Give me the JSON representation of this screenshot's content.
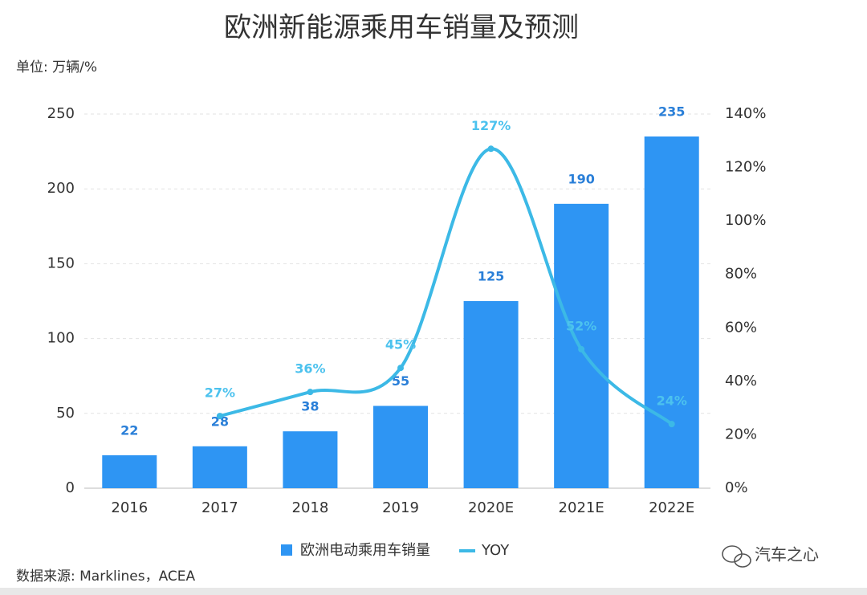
{
  "chart_data": {
    "type": "bar-line",
    "title": "欧洲新能源乘用车销量及预测",
    "subtitle": "单位: 万辆/%",
    "source": "数据来源: Marklines，ACEA",
    "watermark": "汽车之心",
    "categories": [
      "2016",
      "2017",
      "2018",
      "2019",
      "2020E",
      "2021E",
      "2022E"
    ],
    "series": [
      {
        "name": "欧洲电动乘用车销量",
        "type": "bar",
        "color": "#2e95f3",
        "label_color": "#2a7fd8",
        "values": [
          22,
          28,
          38,
          55,
          125,
          190,
          235
        ]
      },
      {
        "name": "YOY",
        "type": "line",
        "axis": "y2",
        "color": "#3cb9e6",
        "label_color": "#4cc2ee",
        "values": [
          null,
          27,
          36,
          45,
          127,
          52,
          24
        ],
        "value_labels": [
          null,
          "27%",
          "36%",
          "45%",
          "127%",
          "52%",
          "24%"
        ]
      }
    ],
    "ylim": [
      0,
      250
    ],
    "yticks": [
      0,
      50,
      100,
      150,
      200,
      250
    ],
    "y2lim": [
      0,
      140
    ],
    "y2ticks": [
      {
        "value": 0,
        "label": "0%"
      },
      {
        "value": 20,
        "label": "20%"
      },
      {
        "value": 40,
        "label": "40%"
      },
      {
        "value": 60,
        "label": "60%"
      },
      {
        "value": 80,
        "label": "80%"
      },
      {
        "value": 100,
        "label": "100%"
      },
      {
        "value": 120,
        "label": "120%"
      },
      {
        "value": 140,
        "label": "140%"
      }
    ],
    "grid": true,
    "legend": "bottom"
  }
}
